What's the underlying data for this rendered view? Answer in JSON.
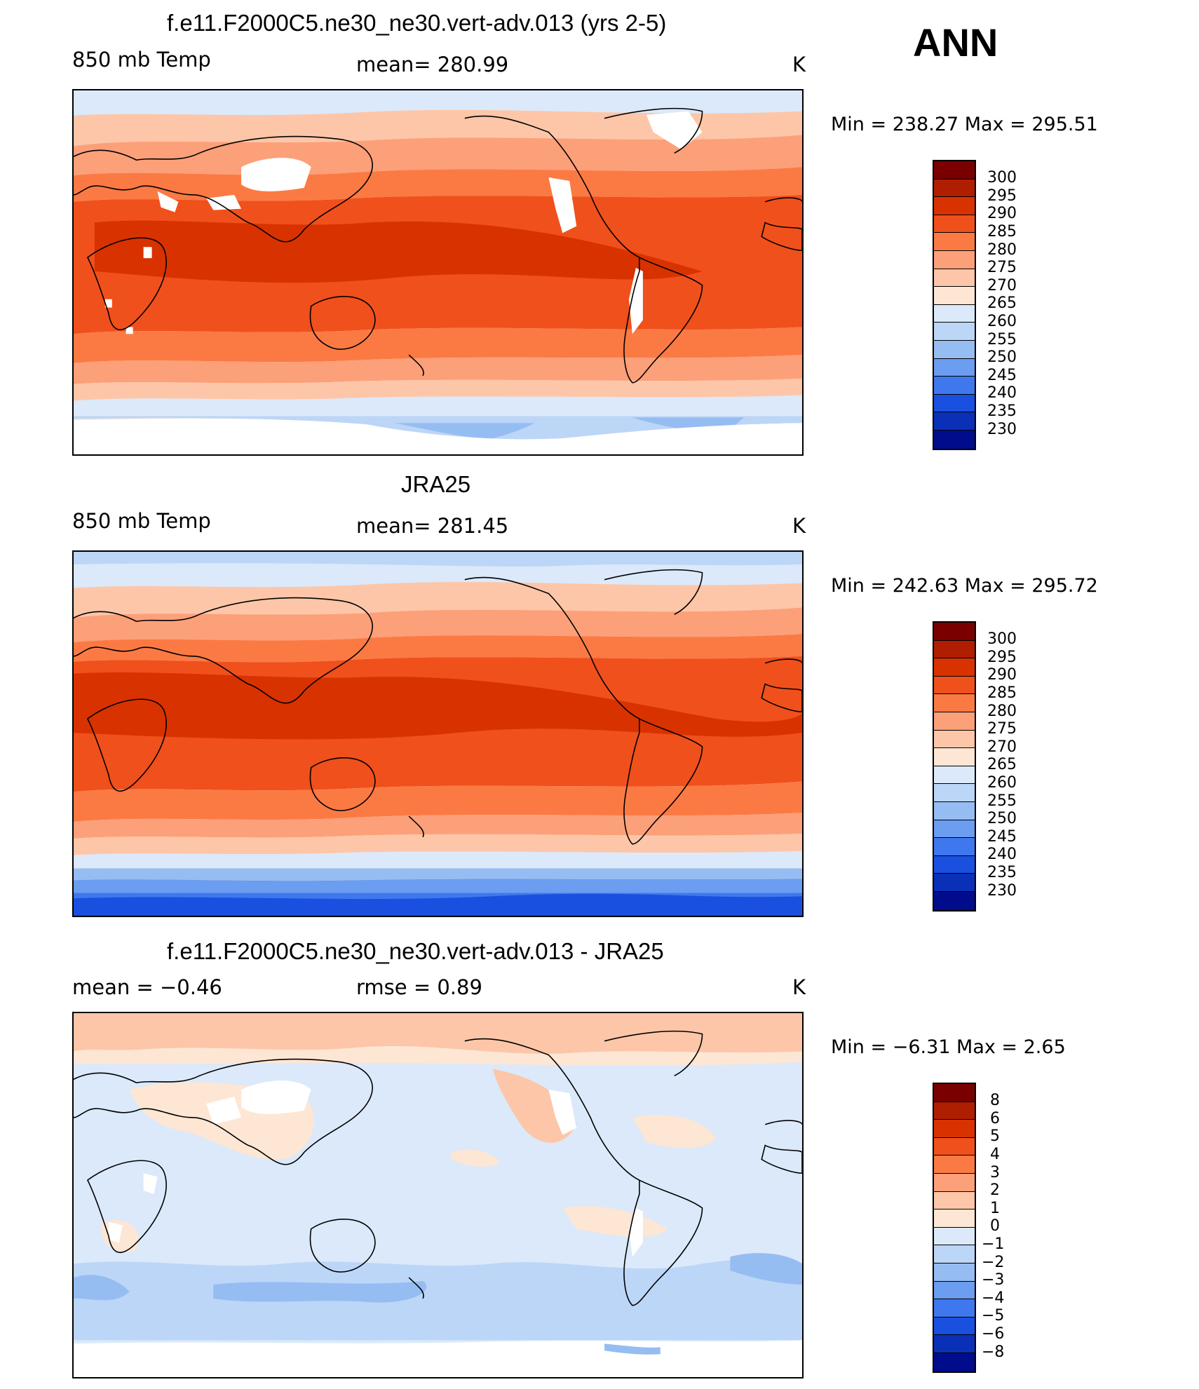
{
  "season": "ANN",
  "panels": [
    {
      "title": "f.e11.F2000C5.ne30_ne30.vert-adv.013 (yrs 2-5)",
      "left_label": "850 mb Temp",
      "center_label": "mean=  280.99",
      "units": "K",
      "minmax": "Min  =  238.27  Max  =  295.51",
      "colorbar_labels": [
        "300",
        "295",
        "290",
        "285",
        "280",
        "275",
        "270",
        "265",
        "260",
        "255",
        "250",
        "245",
        "240",
        "235",
        "230"
      ]
    },
    {
      "title": "JRA25",
      "left_label": "850 mb Temp",
      "center_label": "mean=  281.45",
      "units": "K",
      "minmax": "Min  =  242.63  Max  =  295.72",
      "colorbar_labels": [
        "300",
        "295",
        "290",
        "285",
        "280",
        "275",
        "270",
        "265",
        "260",
        "255",
        "250",
        "245",
        "240",
        "235",
        "230"
      ]
    },
    {
      "title": "f.e11.F2000C5.ne30_ne30.vert-adv.013 - JRA25",
      "left_label": "mean  =    −0.46",
      "center_label": "rmse  =     0.89",
      "units": "K",
      "minmax": "Min  =    −6.31  Max  =     2.65",
      "colorbar_labels": [
        "8",
        "6",
        "5",
        "4",
        "3",
        "2",
        "1",
        "0",
        "−1",
        "−2",
        "−3",
        "−4",
        "−5",
        "−6",
        "−8"
      ]
    }
  ],
  "colors": {
    "abs_scale": [
      "#7a0000",
      "#b01e00",
      "#d83200",
      "#f0501c",
      "#fb7a44",
      "#fca07a",
      "#fdc6a8",
      "#fde6d4",
      "#dbe9fa",
      "#bcd6f7",
      "#95bdf2",
      "#6b9df0",
      "#3f78ee",
      "#1a50e0",
      "#0a30b8",
      "#000c8c"
    ],
    "diff_scale": [
      "#7a0000",
      "#b01e00",
      "#d83200",
      "#f0501c",
      "#fb7a44",
      "#fca07a",
      "#fdc6a8",
      "#fde6d4",
      "#dbe9fa",
      "#bcd6f7",
      "#95bdf2",
      "#6b9df0",
      "#3f78ee",
      "#1a50e0",
      "#0a30b8",
      "#000c8c"
    ]
  }
}
